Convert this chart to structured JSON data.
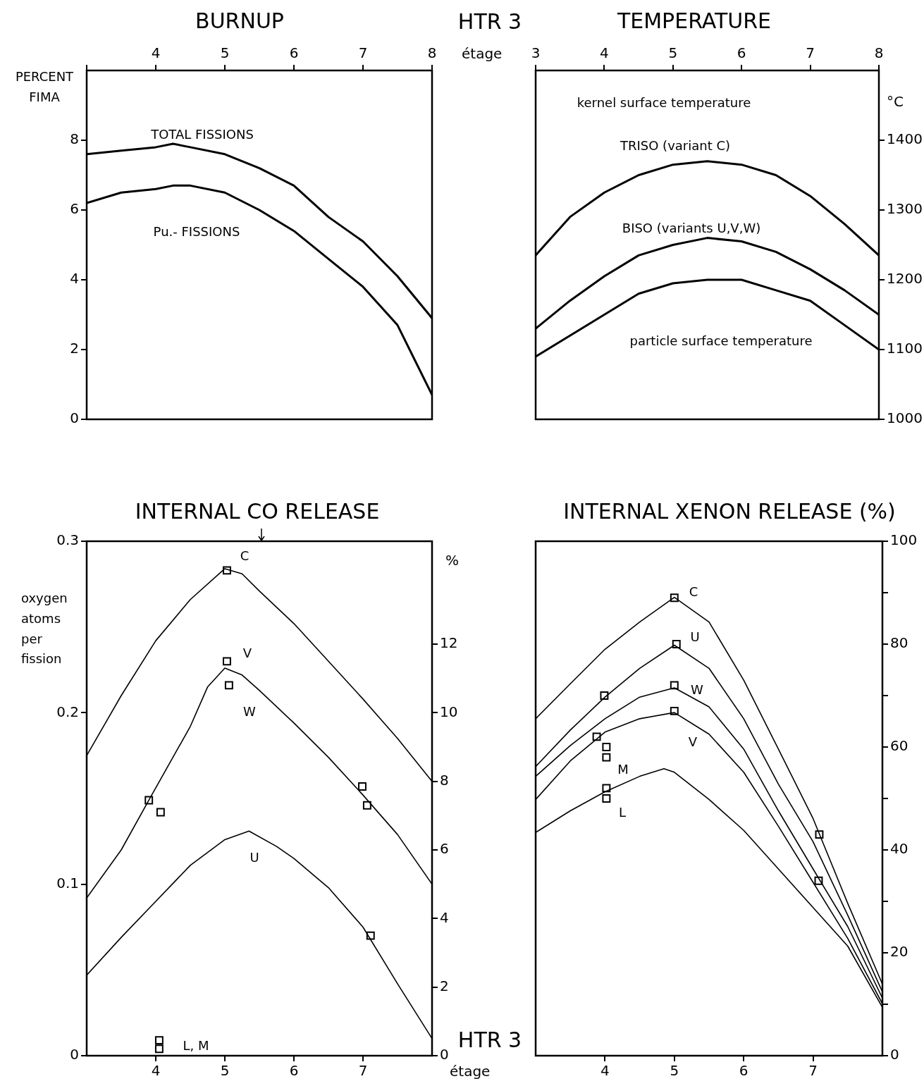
{
  "chart_data": [
    {
      "type": "line",
      "title": "BURNUP",
      "ylabel": "PERCENT FIMA",
      "xlim": [
        3,
        8
      ],
      "xticks": [
        {
          "value": 3,
          "label": null
        },
        4,
        5,
        6,
        7,
        8
      ],
      "ylim": [
        0,
        10
      ],
      "yticks": [
        0,
        2,
        4,
        6,
        8
      ],
      "series": [
        {
          "color": "#000000",
          "x": [
            3,
            3.5,
            4,
            4.25,
            4.5,
            5,
            5.5,
            6,
            6.5,
            7,
            7.5,
            8
          ],
          "values": [
            7.6,
            7.7,
            7.8,
            7.9,
            7.8,
            7.6,
            7.2,
            6.7,
            5.8,
            5.1,
            4.1,
            2.9
          ]
        },
        {
          "color": "#000000",
          "x": [
            3,
            3.5,
            4,
            4.25,
            4.5,
            5,
            5.5,
            6,
            6.5,
            7,
            7.5,
            8
          ],
          "values": [
            6.2,
            6.5,
            6.6,
            6.7,
            6.7,
            6.5,
            6.0,
            5.4,
            4.6,
            3.8,
            2.7,
            0.7
          ]
        }
      ],
      "annotations": [
        "TOTAL FISSIONS",
        "Pu.- FISSIONS"
      ]
    },
    {
      "type": "line",
      "title": "TEMPERATURE",
      "xlabel": "étage",
      "xlim": [
        3,
        8
      ],
      "xticks": [
        3,
        4,
        5,
        6,
        7,
        8
      ],
      "y2label": "°C",
      "y2lim": [
        1000,
        1500
      ],
      "y2ticks": [
        1000,
        1100,
        1200,
        1300,
        1400
      ],
      "series": [
        {
          "color": "#000000",
          "axis": "y2",
          "x": [
            3,
            3.5,
            4,
            4.5,
            5,
            5.5,
            6,
            6.5,
            7,
            7.5,
            8
          ],
          "values": [
            1235,
            1290,
            1325,
            1350,
            1365,
            1370,
            1365,
            1350,
            1320,
            1280,
            1235
          ]
        },
        {
          "color": "#000000",
          "axis": "y2",
          "x": [
            3,
            3.5,
            4,
            4.5,
            5,
            5.5,
            6,
            6.5,
            7,
            7.5,
            8
          ],
          "values": [
            1130,
            1170,
            1205,
            1235,
            1250,
            1260,
            1255,
            1240,
            1215,
            1185,
            1150
          ]
        },
        {
          "color": "#000000",
          "axis": "y2",
          "x": [
            3,
            3.5,
            4,
            4.5,
            5,
            5.5,
            6,
            6.5,
            7,
            7.5,
            8
          ],
          "values": [
            1090,
            1120,
            1150,
            1180,
            1195,
            1200,
            1200,
            1185,
            1170,
            1135,
            1100
          ]
        }
      ],
      "annotations": [
        "HTR 3",
        "kernel surface temperature",
        "TRISO (variant C)",
        "BISO (variants U,V,W)",
        "particle surface temperature"
      ]
    },
    {
      "type": "line",
      "title": "INTERNAL CO RELEASE",
      "xlabel": "étage",
      "ylabel": "oxygen atoms per fission",
      "y2label": "%",
      "xlim": [
        3,
        8
      ],
      "xticks": [
        4,
        5,
        6,
        7
      ],
      "ylim": [
        0,
        0.3
      ],
      "yticks": [
        0,
        0.1,
        0.2,
        0.3
      ],
      "y2lim": [
        0,
        15
      ],
      "y2ticks": [
        0,
        2,
        4,
        6,
        8,
        10,
        12
      ],
      "series": [
        {
          "color": "#000000",
          "x": [
            3,
            3.5,
            4,
            4.5,
            5,
            5.25,
            5.5,
            6,
            6.5,
            7,
            7.5,
            8
          ],
          "values": [
            0.175,
            0.21,
            0.242,
            0.266,
            0.284,
            0.281,
            0.271,
            0.252,
            0.23,
            0.208,
            0.185,
            0.16
          ]
        },
        {
          "color": "#000000",
          "x": [
            3,
            3.5,
            3.9,
            4.5,
            4.75,
            5,
            5.25,
            5.5,
            6,
            6.5,
            7,
            7.5,
            8
          ],
          "values": [
            0.092,
            0.12,
            0.149,
            0.192,
            0.215,
            0.226,
            0.222,
            0.213,
            0.194,
            0.174,
            0.152,
            0.129,
            0.1
          ]
        },
        {
          "color": "#000000",
          "x": [
            3,
            3.5,
            4,
            4.5,
            5,
            5.35,
            5.75,
            6,
            6.5,
            7,
            7.5,
            8
          ],
          "values": [
            0.047,
            0.069,
            0.09,
            0.111,
            0.126,
            0.131,
            0.122,
            0.115,
            0.098,
            0.075,
            0.042,
            0.01
          ]
        },
        {
          "type": "scatter",
          "marker": "square",
          "color": "#000000",
          "x": [
            3.9,
            4.07,
            5.03,
            5.03,
            5.06,
            6.99,
            7.06,
            7.11,
            4.05,
            4.05
          ],
          "values": [
            0.149,
            0.142,
            0.283,
            0.23,
            0.216,
            0.157,
            0.146,
            0.07,
            0.009,
            0.004
          ]
        }
      ],
      "annotations": [
        "HTR 3",
        "C",
        "V",
        "W",
        "U",
        "L, M"
      ]
    },
    {
      "type": "line",
      "title": "INTERNAL XENON RELEASE (%)",
      "xlim": [
        3,
        8
      ],
      "xticks": [
        4,
        5,
        6,
        7
      ],
      "y2lim": [
        0,
        100
      ],
      "y2ticks": [
        0,
        {
          "value": 10,
          "label": null
        },
        20,
        {
          "value": 30,
          "label": null
        },
        40,
        {
          "value": 50,
          "label": null
        },
        60,
        {
          "value": 70,
          "label": null
        },
        80,
        {
          "value": 90,
          "label": null
        },
        100
      ],
      "series": [
        {
          "color": "#000000",
          "axis": "y2",
          "x": [
            3,
            3.5,
            4,
            4.5,
            5,
            5.5,
            6,
            6.5,
            7,
            7.5,
            8
          ],
          "values": [
            65.5,
            72.3,
            79,
            84.3,
            89.1,
            84.3,
            73,
            59.6,
            46.1,
            29.6,
            13.9
          ]
        },
        {
          "color": "#000000",
          "axis": "y2",
          "x": [
            3,
            3.5,
            4,
            4.5,
            5,
            5.5,
            6,
            6.5,
            7,
            7.5,
            8
          ],
          "values": [
            56.2,
            63.3,
            69.7,
            75.3,
            79.8,
            75.3,
            65.5,
            52.8,
            41.6,
            27.3,
            12.4
          ]
        },
        {
          "color": "#000000",
          "axis": "y2",
          "x": [
            3,
            3.5,
            4,
            4.5,
            5,
            5.5,
            6,
            6.5,
            7,
            7.5,
            8
          ],
          "values": [
            54.3,
            60.3,
            65.5,
            69.7,
            71.5,
            67.8,
            59.6,
            47.6,
            36.3,
            25.1,
            11.2
          ]
        },
        {
          "color": "#000000",
          "axis": "y2",
          "x": [
            3,
            3.5,
            4,
            4.5,
            5,
            5.5,
            6,
            6.5,
            7,
            7.5,
            8
          ],
          "values": [
            49.8,
            57.3,
            62.9,
            65.5,
            66.7,
            62.5,
            55.1,
            44.6,
            33.7,
            22.8,
            10.1
          ]
        },
        {
          "color": "#000000",
          "axis": "y2",
          "x": [
            3,
            3.5,
            4,
            4.5,
            4.85,
            5,
            5.5,
            6,
            6.5,
            7,
            7.5,
            8
          ],
          "values": [
            43.4,
            47.6,
            51.3,
            54.3,
            55.8,
            55.1,
            49.8,
            43.8,
            36.3,
            28.8,
            21.3,
            9.4
          ]
        },
        {
          "type": "scatter",
          "marker": "square",
          "color": "#000000",
          "axis": "y2",
          "x": [
            5,
            5.03,
            3.99,
            5,
            5,
            3.88,
            4.02,
            4.02,
            4.02,
            4.02,
            7.09,
            7.08
          ],
          "values": [
            89,
            80,
            70,
            72,
            67,
            62,
            60,
            58,
            52,
            50,
            43,
            34
          ]
        }
      ],
      "annotations": [
        "C",
        "U",
        "W",
        "V",
        "M",
        "L"
      ]
    }
  ]
}
